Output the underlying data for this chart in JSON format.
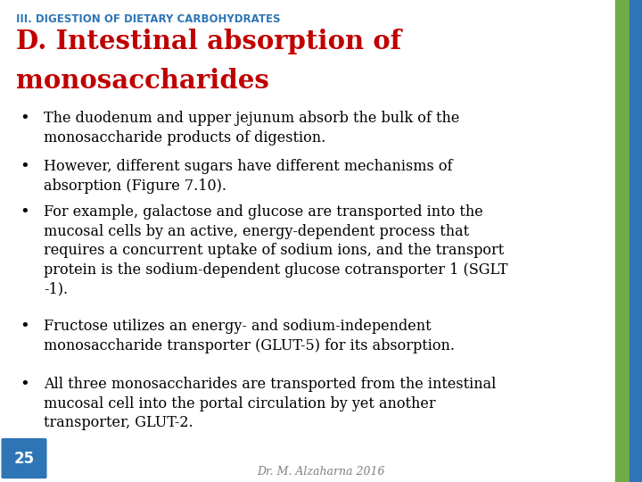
{
  "bg_color": "#ffffff",
  "right_bar_color_green": "#70ad47",
  "right_bar_color_blue": "#2e75b6",
  "top_label": "III. DIGESTION OF DIETARY CARBOHYDRATES",
  "top_label_color": "#2e75b6",
  "title_line1": "D. Intestinal absorption of",
  "title_line2": "monosaccharides",
  "title_color": "#c00000",
  "bullet_color": "#000000",
  "bullets": [
    "The duodenum and upper jejunum absorb the bulk of the\nmonosaccharide products of digestion.",
    "However, different sugars have different mechanisms of\nabsorption (Figure 7.10).",
    "For example, galactose and glucose are transported into the\nmucosal cells by an active, energy-dependent process that\nrequires a concurrent uptake of sodium ions, and the transport\nprotein is the sodium-dependent glucose cotransporter 1 (SGLT\n-1).",
    "Fructose utilizes an energy- and sodium-independent\nmonosaccharide transporter (GLUT-5) for its absorption.",
    "All three monosaccharides are transported from the intestinal\nmucosal cell into the portal circulation by yet another\ntransporter, GLUT-2."
  ],
  "page_number": "25",
  "page_number_color": "#ffffff",
  "page_number_bg": "#2e75b6",
  "footer_text": "Dr. M. Alzaharna 2016",
  "footer_color": "#808080",
  "fig_width": 7.2,
  "fig_height": 5.4,
  "dpi": 100
}
